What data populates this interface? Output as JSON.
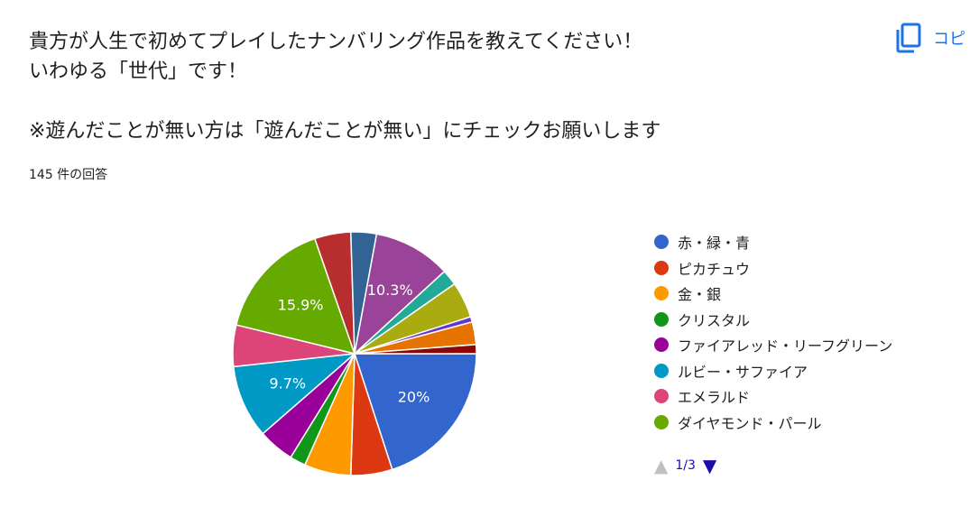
{
  "question": {
    "line1": "貴方が人生で初めてプレイしたナンバリング作品を教えてください！",
    "line2": "いわゆる「世代」です！",
    "line3": "※遊んだことが無い方は「遊んだことが無い」にチェックお願いします"
  },
  "response_count": "145 件の回答",
  "copy_button": {
    "label": "コピ",
    "icon": "copy-icon"
  },
  "pager": {
    "label": "1/3",
    "prev_icon": "triangle-up-icon",
    "next_icon": "triangle-down-icon"
  },
  "colors": {
    "slice_border": "#ffffff",
    "label_text": "#ffffff"
  },
  "chart_data": {
    "type": "pie",
    "title": "",
    "start": "3 o'clock, clockwise",
    "slices": [
      {
        "name": "赤・緑・青",
        "value": 20.0,
        "label": "20%",
        "color": "#3366cc"
      },
      {
        "name": "ピカチュウ",
        "value": 5.5,
        "label": "",
        "color": "#dc3912"
      },
      {
        "name": "金・銀",
        "value": 6.2,
        "label": "",
        "color": "#ff9900"
      },
      {
        "name": "クリスタル",
        "value": 2.1,
        "label": "",
        "color": "#109618"
      },
      {
        "name": "ファイアレッド・リーフグリーン",
        "value": 4.8,
        "label": "",
        "color": "#990099"
      },
      {
        "name": "ルビー・サファイア",
        "value": 9.7,
        "label": "9.7%",
        "color": "#0099c6"
      },
      {
        "name": "エメラルド",
        "value": 5.5,
        "label": "",
        "color": "#dd4477"
      },
      {
        "name": "ダイヤモンド・パール",
        "value": 15.9,
        "label": "15.9%",
        "color": "#66aa00"
      },
      {
        "name": "",
        "value": 4.8,
        "label": "",
        "color": "#b82e2e"
      },
      {
        "name": "",
        "value": 3.4,
        "label": "",
        "color": "#316395"
      },
      {
        "name": "",
        "value": 10.3,
        "label": "10.3%",
        "color": "#994499"
      },
      {
        "name": "",
        "value": 2.1,
        "label": "",
        "color": "#22aa99"
      },
      {
        "name": "",
        "value": 4.8,
        "label": "",
        "color": "#aaaa11"
      },
      {
        "name": "",
        "value": 0.7,
        "label": "",
        "color": "#6633cc"
      },
      {
        "name": "",
        "value": 3.0,
        "label": "",
        "color": "#e67300"
      },
      {
        "name": "",
        "value": 1.2,
        "label": "",
        "color": "#8b0707"
      }
    ],
    "legend": {
      "placement": "right",
      "visible_items": [
        "赤・緑・青",
        "ピカチュウ",
        "金・銀",
        "クリスタル",
        "ファイアレッド・リーフグリーン",
        "ルビー・サファイア",
        "エメラルド",
        "ダイヤモンド・パール"
      ]
    }
  }
}
